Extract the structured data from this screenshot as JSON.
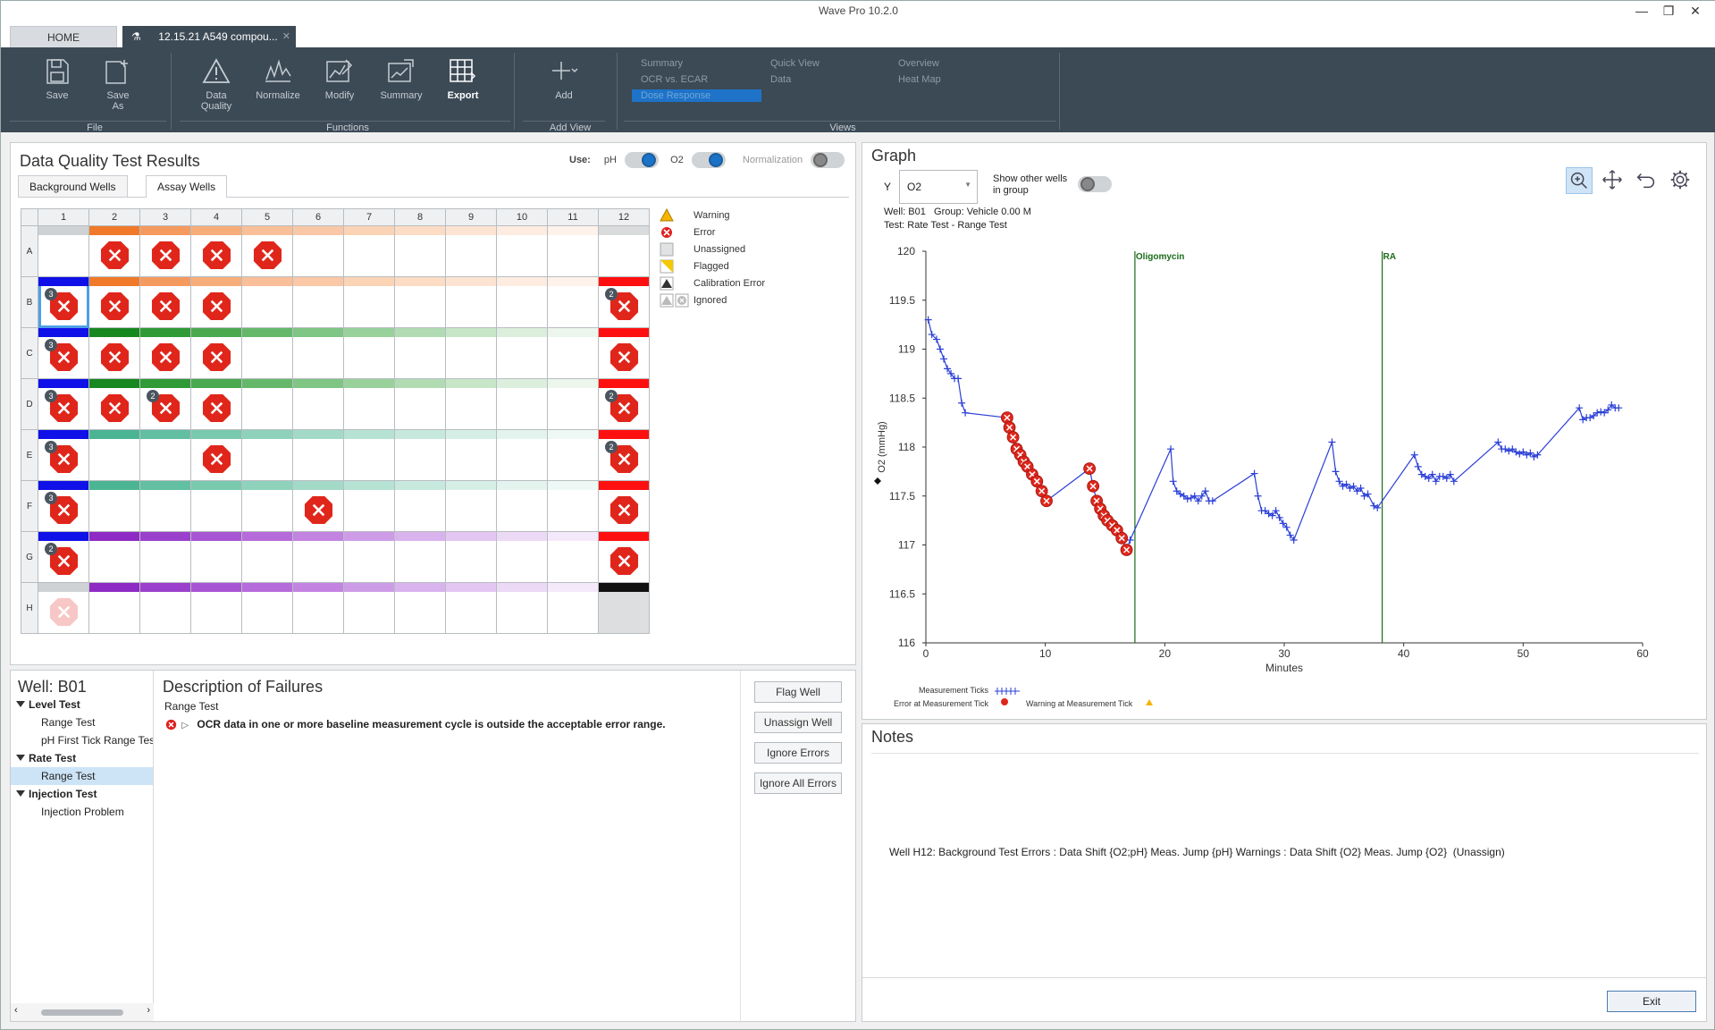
{
  "window": {
    "title": "Wave Pro 10.2.0",
    "min": "—",
    "restore": "❐",
    "close": "✕"
  },
  "tabs": {
    "home": "HOME",
    "doc": "12.15.21 A549 compou...",
    "doc_close": "✕"
  },
  "ribbon": {
    "file": {
      "label": "File",
      "save": "Save",
      "save_as_1": "Save",
      "save_as_2": "As"
    },
    "functions": {
      "label": "Functions",
      "dq_1": "Data",
      "dq_2": "Quality",
      "normalize": "Normalize",
      "modify": "Modify",
      "summary": "Summary",
      "export": "Export"
    },
    "add_view": {
      "label": "Add View",
      "add": "Add"
    },
    "views": {
      "label": "Views",
      "summary": "Summary",
      "ocr_ecar": "OCR vs. ECAR",
      "dose_response": "Dose Response",
      "quick_view": "Quick View",
      "data": "Data",
      "overview": "Overview",
      "heat_map": "Heat Map"
    }
  },
  "dq": {
    "title": "Data Quality Test Results",
    "use_label": "Use:",
    "ph": "pH",
    "o2": "O2",
    "normalization": "Normalization",
    "tab_background": "Background Wells",
    "tab_assay": "Assay Wells",
    "columns": [
      "1",
      "2",
      "3",
      "4",
      "5",
      "6",
      "7",
      "8",
      "9",
      "10",
      "11",
      "12"
    ],
    "rows": [
      "A",
      "B",
      "C",
      "D",
      "E",
      "F",
      "G",
      "H"
    ],
    "legend": [
      "Warning",
      "Error",
      "Unassigned",
      "Flagged",
      "Calibration Error",
      "Ignored"
    ]
  },
  "plate_wells": {
    "A": {
      "bars": [
        "#cfd2d4",
        "#f07a2a",
        "#f59a5e",
        "#f7ad7a",
        "#f9bf98",
        "#fac8a6",
        "#fbd4b6",
        "#fcdcc4",
        "#fde4d2",
        "#feece1",
        "#fef2ea",
        "#d9dbdc"
      ],
      "err": [
        2,
        3,
        4,
        5
      ],
      "badge": {}
    },
    "B": {
      "bars": [
        "#1010e8",
        "#f07a2a",
        "#f59a5e",
        "#f7ad7a",
        "#f9bf98",
        "#fac8a6",
        "#fbd4b6",
        "#fcdcc4",
        "#fde4d2",
        "#feece1",
        "#fef2ea",
        "#ff1010"
      ],
      "err": [
        1,
        2,
        3,
        4,
        12
      ],
      "badge": {
        "1": "3",
        "12": "2"
      }
    },
    "C": {
      "bars": [
        "#1010e8",
        "#17871f",
        "#2f9a36",
        "#4aa94f",
        "#65b86a",
        "#7fc583",
        "#99d19b",
        "#b1dcb3",
        "#c7e6c8",
        "#dbefdc",
        "#ecf6ec",
        "#ff1010"
      ],
      "err": [
        1,
        2,
        3,
        4,
        12
      ],
      "badge": {
        "1": "3"
      }
    },
    "D": {
      "bars": [
        "#1010e8",
        "#17871f",
        "#2f9a36",
        "#4aa94f",
        "#65b86a",
        "#7fc583",
        "#99d19b",
        "#b1dcb3",
        "#c7e6c8",
        "#dbefdc",
        "#ecf6ec",
        "#ff1010"
      ],
      "err": [
        1,
        2,
        3,
        4,
        12
      ],
      "badge": {
        "1": "3",
        "3": "2",
        "12": "2"
      }
    },
    "E": {
      "bars": [
        "#1010e8",
        "#4bb593",
        "#62bfa1",
        "#79c9ae",
        "#8fd2bb",
        "#a3dac7",
        "#b6e2d3",
        "#c7e9dd",
        "#d6efe6",
        "#e3f4ee",
        "#eef9f5",
        "#ff1010"
      ],
      "err": [
        1,
        4,
        12
      ],
      "badge": {
        "1": "3",
        "12": "2"
      }
    },
    "F": {
      "bars": [
        "#1010e8",
        "#4bb593",
        "#62bfa1",
        "#79c9ae",
        "#8fd2bb",
        "#a3dac7",
        "#b6e2d3",
        "#c7e9dd",
        "#d6efe6",
        "#e3f4ee",
        "#eef9f5",
        "#ff1010"
      ],
      "err": [
        1,
        6,
        12
      ],
      "badge": {
        "1": "3"
      }
    },
    "G": {
      "bars": [
        "#1010e8",
        "#8e2bc4",
        "#9b40cc",
        "#a855d3",
        "#b56bda",
        "#c283e1",
        "#ce9ce7",
        "#d9b3ed",
        "#e3c7f2",
        "#ecd9f6",
        "#f4e9fa",
        "#ff1010"
      ],
      "err": [
        1,
        12
      ],
      "badge": {
        "1": "2"
      }
    },
    "H": {
      "bars": [
        "#cfd2d4",
        "#8e2bc4",
        "#9b40cc",
        "#a855d3",
        "#b56bda",
        "#c283e1",
        "#ce9ce7",
        "#d9b3ed",
        "#e3c7f2",
        "#ecd9f6",
        "#f4e9fa",
        "#111111"
      ],
      "err": [],
      "badge": {},
      "faded": [
        1
      ],
      "grey": [
        12
      ]
    }
  },
  "well_panel": {
    "well": "Well: B01",
    "tree": [
      {
        "type": "cat",
        "label": "Level Test"
      },
      {
        "type": "leaf",
        "label": "Range Test"
      },
      {
        "type": "leaf",
        "label": "pH First Tick Range Test"
      },
      {
        "type": "cat",
        "label": "Rate Test"
      },
      {
        "type": "leaf",
        "label": "Range Test",
        "selected": true
      },
      {
        "type": "cat",
        "label": "Injection Test"
      },
      {
        "type": "leaf",
        "label": "Injection Problem"
      }
    ],
    "desc_title": "Description of Failures",
    "desc_test": "Range Test",
    "desc_text": "OCR data in one or more baseline measurement cycle is outside the acceptable error range.",
    "buttons": {
      "flag": "Flag Well",
      "unassign": "Unassign Well",
      "ignore": "Ignore Errors",
      "ignore_all": "Ignore All Errors"
    }
  },
  "graph": {
    "title": "Graph",
    "y_label": "Y",
    "y_value": "O2",
    "show_other": "Show other wells in group",
    "show_other_1": "Show other wells",
    "show_other_2": "in group",
    "info_well": "Well: B01   Group: Vehicle 0.00 M",
    "info_test": "Test: Rate Test - Range Test",
    "legend_ticks": "Measurement Ticks",
    "legend_error": "Error at Measurement Tick",
    "legend_warning": "Warning at Measurement Tick",
    "tools": [
      "zoom-icon",
      "pan-icon",
      "undo-icon",
      "settings-icon"
    ]
  },
  "chart_data": {
    "type": "line",
    "xlabel": "Minutes",
    "ylabel": "O2 (mmHg)",
    "xlim": [
      0,
      60
    ],
    "ylim": [
      116,
      120
    ],
    "xticks": [
      0,
      10,
      20,
      30,
      40,
      50,
      60
    ],
    "yticks": [
      116,
      116.5,
      117,
      117.5,
      118,
      118.5,
      119,
      119.5,
      120
    ],
    "injections": [
      {
        "x": 17.5,
        "label": "Oligomycin"
      },
      {
        "x": 38.2,
        "label": "RA"
      }
    ],
    "series": [
      {
        "values": [
          [
            0.2,
            119.3
          ],
          [
            0.5,
            119.15
          ],
          [
            0.9,
            119.1
          ],
          [
            1.2,
            119.0
          ],
          [
            1.5,
            118.9
          ],
          [
            1.8,
            118.8
          ],
          [
            2.1,
            118.75
          ],
          [
            2.4,
            118.7
          ],
          [
            2.7,
            118.7
          ],
          [
            3.0,
            118.45
          ],
          [
            3.3,
            118.35
          ],
          [
            6.8,
            118.3
          ],
          [
            7.0,
            118.2
          ],
          [
            7.3,
            118.1
          ],
          [
            7.6,
            117.98
          ],
          [
            7.9,
            117.92
          ],
          [
            8.2,
            117.85
          ],
          [
            8.5,
            117.8
          ],
          [
            8.9,
            117.72
          ],
          [
            9.3,
            117.65
          ],
          [
            9.7,
            117.55
          ],
          [
            10.1,
            117.45
          ],
          [
            13.7,
            117.78
          ],
          [
            14.0,
            117.6
          ],
          [
            14.3,
            117.45
          ],
          [
            14.6,
            117.37
          ],
          [
            14.9,
            117.3
          ],
          [
            15.2,
            117.25
          ],
          [
            15.6,
            117.2
          ],
          [
            16.0,
            117.15
          ],
          [
            16.4,
            117.07
          ],
          [
            16.8,
            116.95
          ],
          [
            17.1,
            117.05
          ],
          [
            20.5,
            117.98
          ],
          [
            20.7,
            117.65
          ],
          [
            21.0,
            117.55
          ],
          [
            21.3,
            117.52
          ],
          [
            21.6,
            117.5
          ],
          [
            21.9,
            117.47
          ],
          [
            22.2,
            117.48
          ],
          [
            22.5,
            117.5
          ],
          [
            22.8,
            117.45
          ],
          [
            23.1,
            117.5
          ],
          [
            23.4,
            117.55
          ],
          [
            23.7,
            117.45
          ],
          [
            24.0,
            117.45
          ],
          [
            27.5,
            117.73
          ],
          [
            27.8,
            117.5
          ],
          [
            28.1,
            117.35
          ],
          [
            28.4,
            117.35
          ],
          [
            28.7,
            117.32
          ],
          [
            29.0,
            117.3
          ],
          [
            29.3,
            117.35
          ],
          [
            29.6,
            117.28
          ],
          [
            29.9,
            117.22
          ],
          [
            30.2,
            117.18
          ],
          [
            30.5,
            117.1
          ],
          [
            30.8,
            117.05
          ],
          [
            34.0,
            118.05
          ],
          [
            34.3,
            117.75
          ],
          [
            34.6,
            117.65
          ],
          [
            34.9,
            117.6
          ],
          [
            35.2,
            117.62
          ],
          [
            35.5,
            117.58
          ],
          [
            35.8,
            117.6
          ],
          [
            36.1,
            117.55
          ],
          [
            36.4,
            117.58
          ],
          [
            36.7,
            117.5
          ],
          [
            37.0,
            117.52
          ],
          [
            37.5,
            117.4
          ],
          [
            37.8,
            117.38
          ],
          [
            40.9,
            117.92
          ],
          [
            41.2,
            117.8
          ],
          [
            41.5,
            117.72
          ],
          [
            41.8,
            117.7
          ],
          [
            42.1,
            117.68
          ],
          [
            42.4,
            117.72
          ],
          [
            42.7,
            117.65
          ],
          [
            43.0,
            117.7
          ],
          [
            43.3,
            117.7
          ],
          [
            43.6,
            117.68
          ],
          [
            43.9,
            117.72
          ],
          [
            44.2,
            117.65
          ],
          [
            47.9,
            118.05
          ],
          [
            48.2,
            117.98
          ],
          [
            48.5,
            117.98
          ],
          [
            48.8,
            117.96
          ],
          [
            49.1,
            117.98
          ],
          [
            49.4,
            117.95
          ],
          [
            49.7,
            117.93
          ],
          [
            50.0,
            117.95
          ],
          [
            50.3,
            117.92
          ],
          [
            50.6,
            117.94
          ],
          [
            50.9,
            117.9
          ],
          [
            51.2,
            117.92
          ],
          [
            54.7,
            118.4
          ],
          [
            55.0,
            118.28
          ],
          [
            55.3,
            118.3
          ],
          [
            55.6,
            118.3
          ],
          [
            55.9,
            118.32
          ],
          [
            56.2,
            118.35
          ],
          [
            56.5,
            118.36
          ],
          [
            56.8,
            118.35
          ],
          [
            57.1,
            118.38
          ],
          [
            57.4,
            118.43
          ],
          [
            57.7,
            118.4
          ],
          [
            58.0,
            118.4
          ]
        ],
        "errors": [
          [
            6.8,
            118.3
          ],
          [
            7.0,
            118.2
          ],
          [
            7.3,
            118.1
          ],
          [
            7.6,
            117.98
          ],
          [
            7.9,
            117.92
          ],
          [
            8.2,
            117.85
          ],
          [
            8.5,
            117.8
          ],
          [
            8.9,
            117.72
          ],
          [
            9.3,
            117.65
          ],
          [
            9.7,
            117.55
          ],
          [
            10.1,
            117.45
          ],
          [
            13.7,
            117.78
          ],
          [
            14.0,
            117.6
          ],
          [
            14.3,
            117.45
          ],
          [
            14.6,
            117.37
          ],
          [
            14.9,
            117.3
          ],
          [
            15.2,
            117.25
          ],
          [
            15.6,
            117.2
          ],
          [
            16.0,
            117.15
          ],
          [
            16.4,
            117.07
          ],
          [
            16.8,
            116.95
          ]
        ]
      }
    ]
  },
  "notes": {
    "title": "Notes",
    "text": "Well H12: Background Test Errors : Data Shift {O2;pH} Meas. Jump {pH} Warnings : Data Shift {O2} Meas. Jump {O2}  (Unassign)"
  },
  "footer": {
    "exit": "Exit"
  }
}
